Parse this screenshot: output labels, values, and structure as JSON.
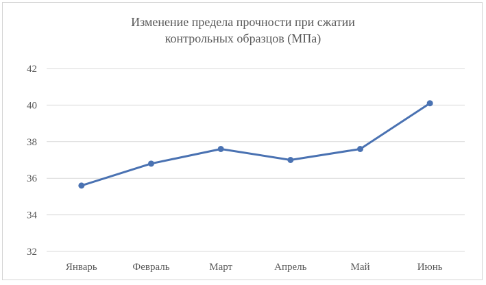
{
  "chart_data": {
    "type": "line",
    "title_lines": [
      "Изменение предела прочности при сжатии",
      "контрольных образцов (МПа)"
    ],
    "categories": [
      "Январь",
      "Февраль",
      "Март",
      "Апрель",
      "Май",
      "Июнь"
    ],
    "series": [
      {
        "values": [
          35.6,
          36.8,
          37.6,
          37.0,
          37.6,
          40.1
        ]
      }
    ],
    "ylim": [
      32,
      42
    ],
    "yticks": [
      32,
      34,
      36,
      38,
      40,
      42
    ],
    "grid": true,
    "colors": {
      "line": "#4a72b2",
      "grid": "#d9d9d9",
      "text": "#595959"
    }
  }
}
